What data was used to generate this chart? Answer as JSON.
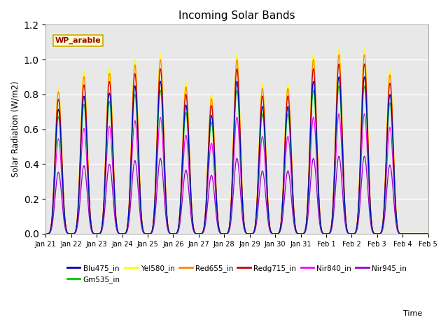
{
  "title": "Incoming Solar Bands",
  "ylabel": "Solar Radiation (W/m2)",
  "annotation": "WP_arable",
  "ylim": [
    0,
    1.2
  ],
  "bands": [
    {
      "name": "Blu475_in",
      "color": "#0000cc",
      "peak_scale": 0.85
    },
    {
      "name": "Gm535_in",
      "color": "#00cc00",
      "peak_scale": 0.8
    },
    {
      "name": "Yel580_in",
      "color": "#ffff00",
      "peak_scale": 1.0
    },
    {
      "name": "Red655_in",
      "color": "#ff8800",
      "peak_scale": 0.97
    },
    {
      "name": "Redg715_in",
      "color": "#cc0000",
      "peak_scale": 0.92
    },
    {
      "name": "Nir840_in",
      "color": "#ff00ff",
      "peak_scale": 0.65
    },
    {
      "name": "Nir945_in",
      "color": "#9900cc",
      "peak_scale": 0.42
    }
  ],
  "day_peaks": [
    0.84,
    0.93,
    0.95,
    1.0,
    1.03,
    0.87,
    0.8,
    1.03,
    0.86,
    0.86,
    1.03,
    1.06,
    1.06,
    0.94,
    0.0
  ],
  "n_points_per_day": 500,
  "background_color": "#e8e8e8",
  "grid_color": "white",
  "title_fontsize": 11,
  "tick_fontsize": 7,
  "legend_fontsize": 7.5
}
